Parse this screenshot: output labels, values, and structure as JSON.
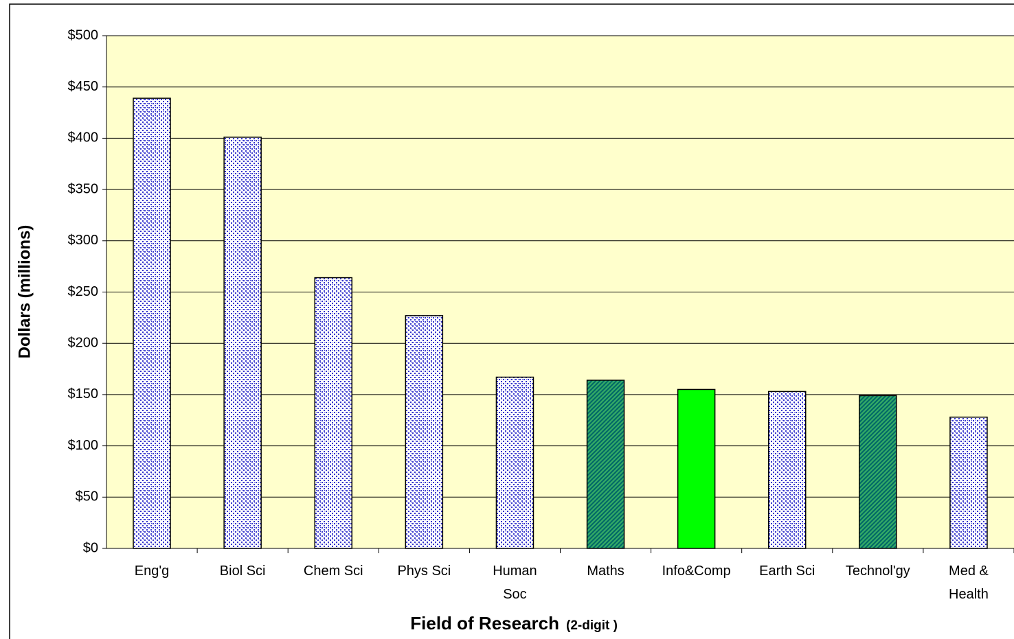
{
  "chart_data": {
    "type": "bar",
    "ylabel": "Dollars (millions)",
    "xlabel": "Field of Research",
    "xlabel_note": "(2-digit )",
    "categories": [
      "Eng'g",
      "Biol Sci",
      "Chem Sci",
      "Phys Sci",
      "Human\nSoc",
      "Maths",
      "Info&Comp",
      "Earth Sci",
      "Technol'gy",
      "Med &\nHealth"
    ],
    "values": [
      439,
      401,
      264,
      227,
      167,
      164,
      155,
      153,
      149,
      128
    ],
    "colors": [
      "#3333cc",
      "#3333cc",
      "#3333cc",
      "#3333cc",
      "#3333cc",
      "#006666",
      "#00ff00",
      "#3333cc",
      "#006666",
      "#3333cc"
    ],
    "ylim": [
      0,
      500
    ],
    "yticks": [
      {
        "value": 0,
        "label": "$0"
      },
      {
        "value": 50,
        "label": "$50"
      },
      {
        "value": 100,
        "label": "$100"
      },
      {
        "value": 150,
        "label": "$150"
      },
      {
        "value": 200,
        "label": "$200"
      },
      {
        "value": 250,
        "label": "$250"
      },
      {
        "value": 300,
        "label": "$300"
      },
      {
        "value": 350,
        "label": "$350"
      },
      {
        "value": 400,
        "label": "$400"
      },
      {
        "value": 450,
        "label": "$450"
      },
      {
        "value": 500,
        "label": "$500"
      }
    ],
    "grid": true
  }
}
